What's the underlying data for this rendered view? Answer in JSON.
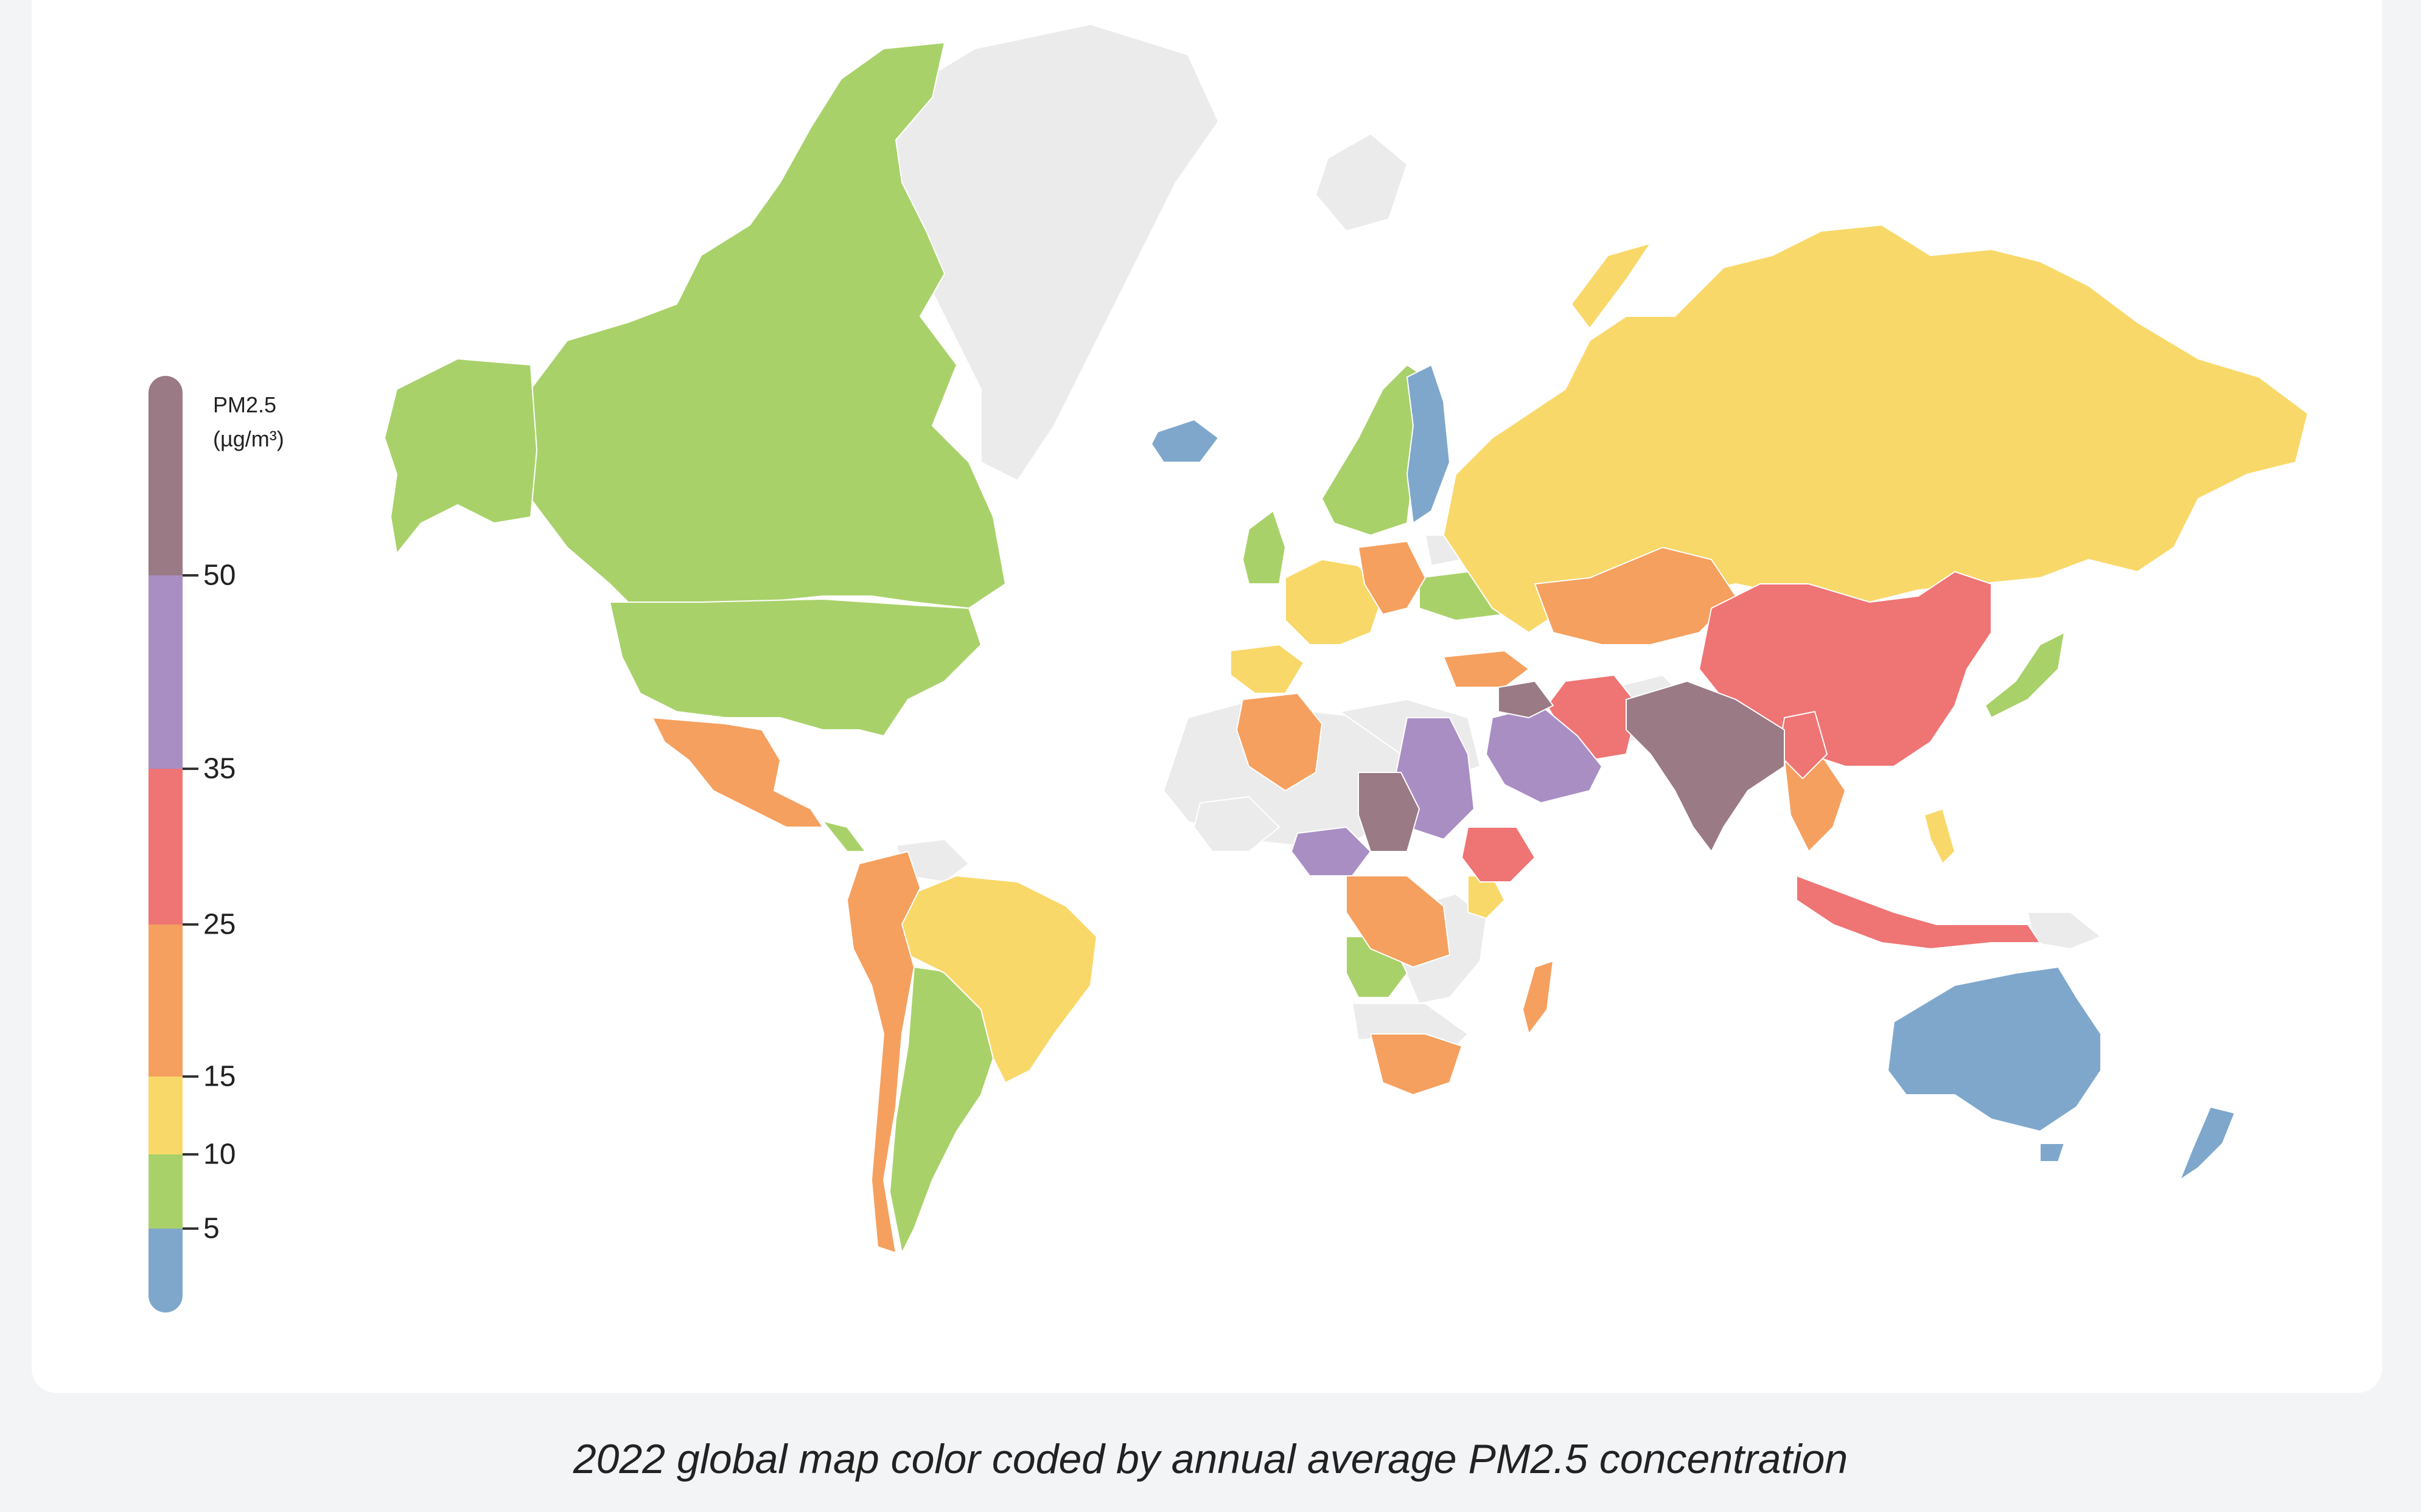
{
  "legend": {
    "title_line1": "PM2.5",
    "title_line2": "(µg/m³)",
    "ticks": [
      "50",
      "35",
      "25",
      "15",
      "10",
      "5"
    ]
  },
  "caption": "2022 global map color coded by annual average PM2.5 concentration",
  "colors": {
    "no_data": "#ebebeb",
    "lt5": "#7fa7cc",
    "r5_10": "#a9d16a",
    "r10_15": "#f9d86a",
    "r15_25": "#f5a05f",
    "r25_35": "#ef7474",
    "r35_50": "#a98ec4",
    "gt50": "#9a7a85"
  },
  "regions": [
    {
      "name": "Canada",
      "category": "r5_10"
    },
    {
      "name": "Alaska",
      "category": "r5_10"
    },
    {
      "name": "United States",
      "category": "r5_10"
    },
    {
      "name": "Greenland",
      "category": "no_data"
    },
    {
      "name": "Iceland",
      "category": "lt5"
    },
    {
      "name": "Mexico",
      "category": "r15_25"
    },
    {
      "name": "Central America",
      "category": "r15_25"
    },
    {
      "name": "Colombia/Venezuela",
      "category": "r15_25"
    },
    {
      "name": "Brazil",
      "category": "r10_15"
    },
    {
      "name": "Peru",
      "category": "r15_25"
    },
    {
      "name": "Chile",
      "category": "r15_25"
    },
    {
      "name": "Argentina",
      "category": "r5_10"
    },
    {
      "name": "Scandinavia",
      "category": "r5_10"
    },
    {
      "name": "Finland",
      "category": "lt5"
    },
    {
      "name": "Western Europe",
      "category": "r10_15"
    },
    {
      "name": "Eastern Europe",
      "category": "r15_25"
    },
    {
      "name": "Russia",
      "category": "r10_15"
    },
    {
      "name": "Kazakhstan",
      "category": "r15_25"
    },
    {
      "name": "China",
      "category": "r25_35"
    },
    {
      "name": "Iran",
      "category": "r25_35"
    },
    {
      "name": "Pakistan/India",
      "category": "gt50"
    },
    {
      "name": "Arabia",
      "category": "r35_50"
    },
    {
      "name": "Algeria",
      "category": "r15_25"
    },
    {
      "name": "Sahel",
      "category": "r35_50"
    },
    {
      "name": "Chad",
      "category": "gt50"
    },
    {
      "name": "Ethiopia",
      "category": "r25_35"
    },
    {
      "name": "Central Africa",
      "category": "r15_25"
    },
    {
      "name": "Angola",
      "category": "r5_10"
    },
    {
      "name": "Southern Africa",
      "category": "r15_25"
    },
    {
      "name": "Madagascar",
      "category": "r15_25"
    },
    {
      "name": "Southeast Asia",
      "category": "r15_25"
    },
    {
      "name": "Indonesia",
      "category": "r25_35"
    },
    {
      "name": "Japan",
      "category": "r5_10"
    },
    {
      "name": "Australia",
      "category": "lt5"
    },
    {
      "name": "New Zealand",
      "category": "lt5"
    }
  ]
}
